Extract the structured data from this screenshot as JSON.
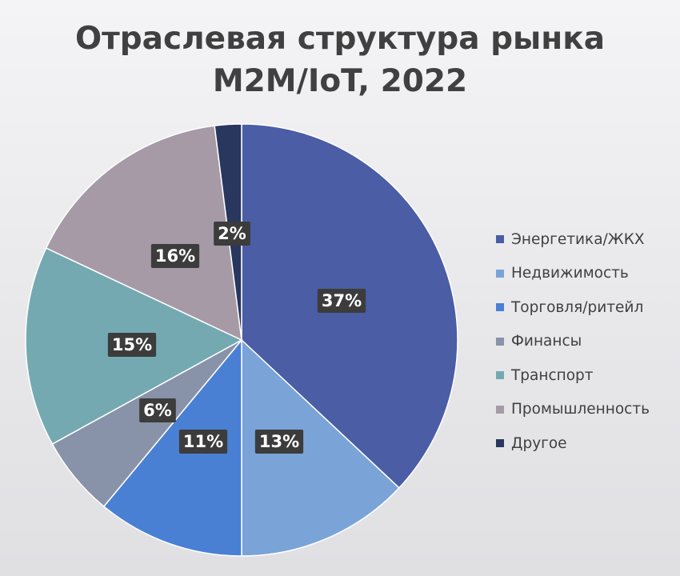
{
  "chart_data": {
    "type": "pie",
    "title_lines": [
      "Отраслевая структура рынка",
      "M2M/IoT, 2022"
    ],
    "start_angle_deg": 0,
    "direction": "clockwise",
    "slices": [
      {
        "name": "Энергетика/ЖКХ",
        "value": 37,
        "label": "37%",
        "color": "#4a5da5"
      },
      {
        "name": "Недвижимость",
        "value": 13,
        "label": "13%",
        "color": "#7aa3d8"
      },
      {
        "name": "Торговля/ритейл",
        "value": 11,
        "label": "11%",
        "color": "#4a80d4"
      },
      {
        "name": "Финансы",
        "value": 6,
        "label": "6%",
        "color": "#8892a8"
      },
      {
        "name": "Транспорт",
        "value": 15,
        "label": "15%",
        "color": "#74a9b2"
      },
      {
        "name": "Промышленность",
        "value": 16,
        "label": "16%",
        "color": "#a59aa5"
      },
      {
        "name": "Другое",
        "value": 2,
        "label": "2%",
        "color": "#29375e"
      }
    ],
    "legend_position": "right",
    "data_labels": "inside, dark boxes"
  }
}
